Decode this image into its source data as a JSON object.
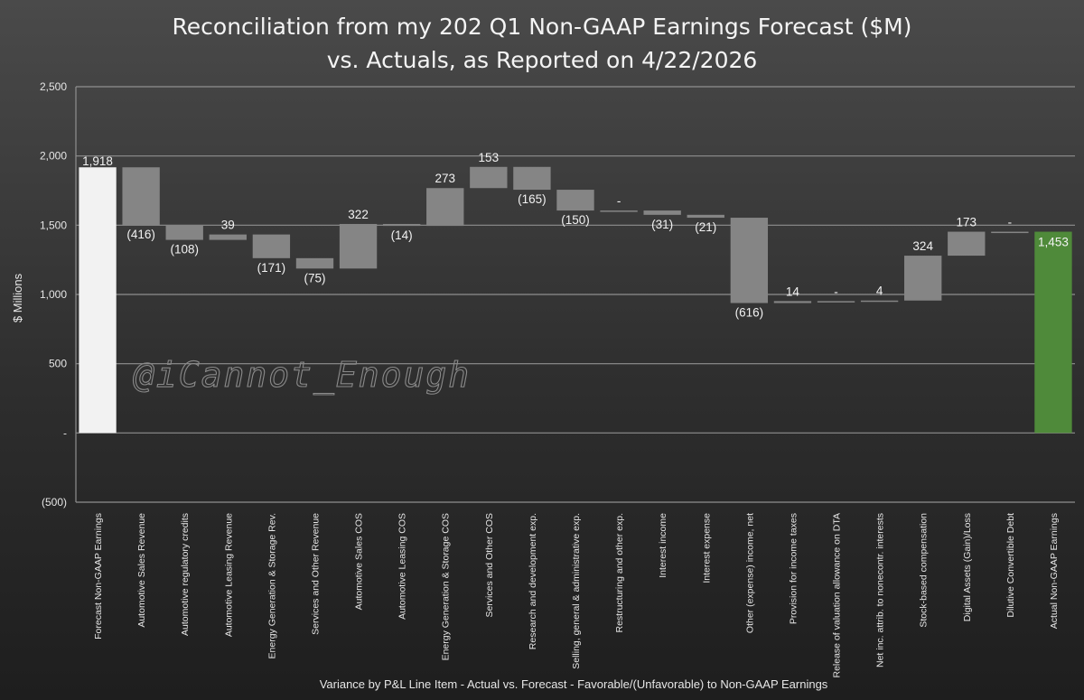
{
  "chart_data": {
    "type": "bar",
    "title": "Reconciliation from my 202 Q1 Non-GAAP Earnings Forecast ($M)",
    "subtitle": "vs. Actuals, as Reported on 4/22/2026",
    "xlabel": "Variance by P&L Line Item - Actual vs. Forecast - Favorable/(Unfavorable) to Non-GAAP Earnings",
    "ylabel": "$ Millions",
    "ylim": [
      -500,
      2500
    ],
    "yticks": [
      2500,
      2000,
      1500,
      1000,
      500,
      0,
      -500
    ],
    "ytick_labels": [
      "2,500",
      "2,000",
      "1,500",
      "1,000",
      "500",
      "-",
      "(500)"
    ],
    "grid": true,
    "watermark": "@iCannot_Enough",
    "colors": {
      "start": "#f2f2f2",
      "step": "#858585",
      "end": "#4f8a3a"
    },
    "categories": [
      "Forecast Non-GAAP Earnings",
      "Automotive Sales Revenue",
      "Automotive regulatory credits",
      "Automotive Leasing Revenue",
      "Energy Generation & Storage Rev.",
      "Services and Other Revenue",
      "Automotive Sales COS",
      "Automotive Leasing COS",
      "Energy Generation & Storage COS",
      "Services and Other COS",
      "Research and development exp.",
      "Selling, general & administrative exp.",
      "Restructuring and other exp.",
      "Interest income",
      "Interest expense",
      "Other (expense) income, net",
      "Provision for income taxes",
      "Release of valuation allowance on DTA",
      "Net inc. attrib. to nonecontr. interests",
      "Stock-based compensation",
      "Digital Assets (Gain)/Loss",
      "Dilutive Convertible Debt",
      "Actual Non-GAAP Earnings"
    ],
    "kinds": [
      "total",
      "step",
      "step",
      "step",
      "step",
      "step",
      "step",
      "step",
      "step",
      "step",
      "step",
      "step",
      "step",
      "step",
      "step",
      "step",
      "step",
      "step",
      "step",
      "step",
      "step",
      "step",
      "total"
    ],
    "values": [
      1918,
      -416,
      -108,
      39,
      -171,
      -75,
      322,
      -14,
      273,
      153,
      -165,
      -150,
      0,
      -31,
      -21,
      -616,
      14,
      0,
      4,
      324,
      173,
      0,
      1453
    ],
    "data_labels": [
      "1,918",
      "(416)",
      "(108)",
      "39",
      "(171)",
      "(75)",
      "322",
      "(14)",
      "273",
      "153",
      "(165)",
      "(150)",
      "-",
      "(31)",
      "(21)",
      "(616)",
      "14",
      "-",
      "4",
      "324",
      "173",
      "-",
      "1,453"
    ]
  }
}
